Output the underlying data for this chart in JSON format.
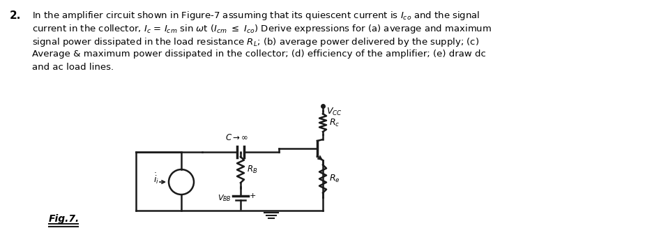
{
  "background_color": "#ffffff",
  "text_color": "#000000",
  "circuit_color": "#1a1a1a",
  "question_number": "2.",
  "fig_label": "Fig.7."
}
